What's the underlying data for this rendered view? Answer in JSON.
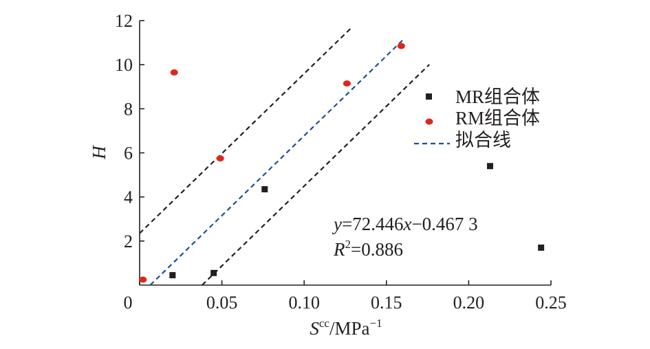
{
  "chart_data": {
    "type": "scatter",
    "xlabel": {
      "base": "S",
      "sup": "cc",
      "rest": "/MPa",
      "rest_sup": "−1"
    },
    "ylabel": "H",
    "xlim": [
      0,
      0.25
    ],
    "ylim": [
      0,
      12
    ],
    "x_ticks": [
      0,
      0.05,
      0.1,
      0.15,
      0.2,
      0.25
    ],
    "x_tick_labels": [
      "0",
      "0.05",
      "0.10",
      "0.15",
      "0.20",
      "0.25"
    ],
    "y_ticks": [
      2,
      4,
      6,
      8,
      10,
      12
    ],
    "y_tick_labels": [
      "2",
      "4",
      "6",
      "8",
      "10",
      "12"
    ],
    "grid": false,
    "legend_position": "right",
    "series": [
      {
        "name": "MR组合体",
        "marker": "square",
        "color": "#231f20",
        "points": [
          {
            "x": 0.02,
            "y": 0.45
          },
          {
            "x": 0.045,
            "y": 0.55
          },
          {
            "x": 0.076,
            "y": 4.35
          },
          {
            "x": 0.213,
            "y": 5.4
          },
          {
            "x": 0.244,
            "y": 1.7
          }
        ]
      },
      {
        "name": "RM组合体",
        "marker": "circle",
        "color": "#e0261c",
        "points": [
          {
            "x": 0.002,
            "y": 0.25
          },
          {
            "x": 0.021,
            "y": 9.65
          },
          {
            "x": 0.049,
            "y": 5.75
          },
          {
            "x": 0.126,
            "y": 9.15
          },
          {
            "x": 0.159,
            "y": 10.85
          }
        ]
      }
    ],
    "fit_line": {
      "name": "拟合线",
      "color": "#1f4e96",
      "style": "dashed",
      "slope": 72.446,
      "intercept": -0.4673,
      "x_range": [
        0.0065,
        0.16
      ]
    },
    "bound_lines": [
      {
        "color": "#231f20",
        "style": "dashed",
        "slope": 72.446,
        "intercept": 2.35,
        "x_range": [
          0.0,
          0.1295
        ]
      },
      {
        "color": "#231f20",
        "style": "dashed",
        "slope": 72.446,
        "intercept": -2.75,
        "x_range": [
          0.038,
          0.1761
        ]
      }
    ],
    "annotation": {
      "equation": {
        "y": "y",
        "eq_mid": "=72.446",
        "x": "x",
        "eq_end": "−0.467 3"
      },
      "r2": {
        "r": "R",
        "sup": "2",
        "value": "=0.886"
      }
    }
  }
}
